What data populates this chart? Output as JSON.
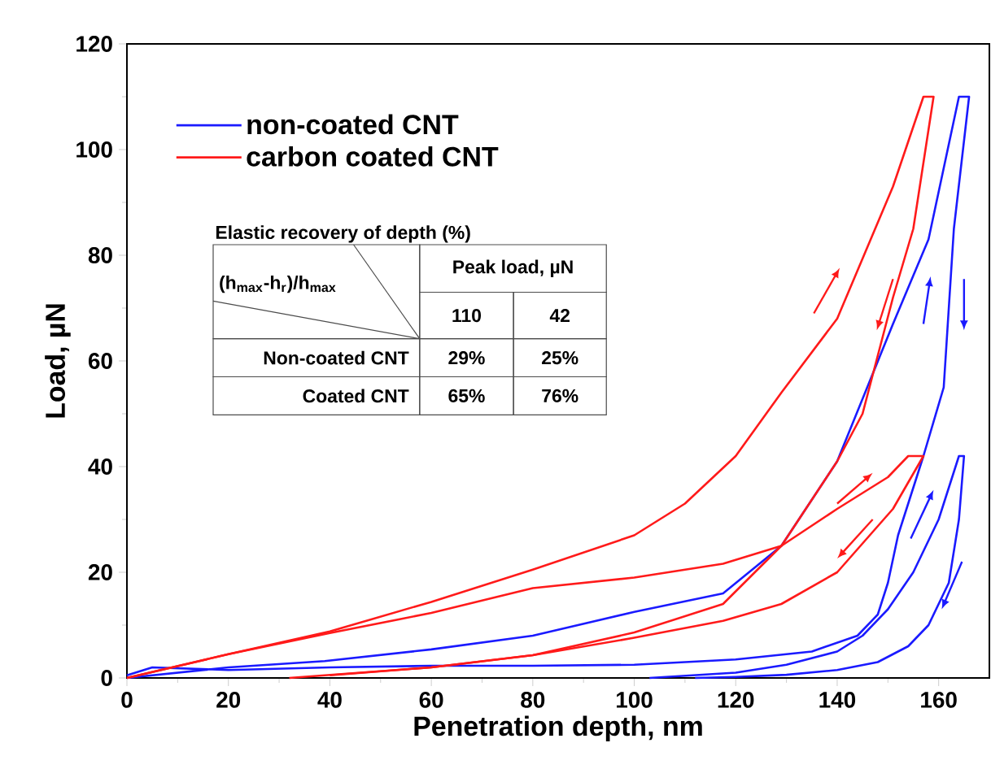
{
  "chart_data": {
    "type": "line",
    "xlabel": "Penetration depth, nm",
    "ylabel": "Load, µN",
    "xlim": [
      0,
      170
    ],
    "ylim": [
      0,
      120
    ],
    "xticks": [
      0,
      20,
      40,
      60,
      80,
      100,
      120,
      140,
      160
    ],
    "yticks": [
      0,
      20,
      40,
      60,
      80,
      100,
      120
    ],
    "legend": "top left",
    "grid": false,
    "marker": "none",
    "line_style": "solid",
    "series": [
      {
        "name": "non-coated CNT",
        "color": "#1a1aff",
        "x": [
          0,
          20,
          39,
          60,
          80,
          100,
          117.5,
          129,
          140,
          151,
          158,
          162,
          164,
          166,
          163,
          161,
          157,
          152,
          150,
          148,
          144,
          135,
          120,
          100,
          80,
          60,
          40,
          20,
          5,
          0
        ],
        "values": [
          0,
          2,
          3.2,
          5.4,
          8,
          12.5,
          16,
          25,
          41,
          67,
          83,
          101,
          110,
          110,
          85,
          55,
          42,
          27,
          18,
          12,
          8,
          5,
          3.5,
          2.5,
          2.3,
          2.3,
          2,
          1.5,
          2,
          0.5
        ]
      },
      {
        "name": "carbon coated CNT",
        "color": "#ff1a1a",
        "x": [
          0,
          20,
          40,
          60,
          80,
          100,
          110,
          120,
          129,
          140,
          151,
          157,
          159,
          155,
          151,
          145,
          140,
          129,
          117.5,
          100,
          80,
          60,
          32
        ],
        "values": [
          0,
          4.5,
          8.8,
          14.4,
          20.5,
          27,
          33,
          42,
          54,
          68,
          93,
          110,
          110,
          85,
          72,
          50,
          41,
          25,
          14,
          8.6,
          4.3,
          2,
          0
        ]
      },
      {
        "color": "#1a1aff",
        "x": [
          103,
          120,
          130,
          140,
          145,
          150,
          155,
          160,
          164,
          165,
          164,
          162,
          158,
          154,
          148,
          140,
          130,
          120,
          112
        ],
        "values": [
          0,
          1,
          2.5,
          5,
          8,
          13,
          20,
          30,
          42,
          42,
          30,
          18,
          10,
          6,
          3,
          1.5,
          0.6,
          0.2,
          0
        ]
      },
      {
        "color": "#ff1a1a",
        "x": [
          0,
          20,
          40,
          60,
          80,
          100,
          117.5,
          129,
          140,
          150,
          154,
          157,
          151,
          140,
          129,
          117.5,
          100,
          80,
          60,
          40
        ],
        "values": [
          0,
          4.5,
          8.5,
          12.3,
          17,
          19,
          21.6,
          25,
          32,
          38,
          42,
          42,
          32,
          20,
          14,
          10.8,
          7.6,
          4.3,
          2,
          0.5
        ]
      }
    ],
    "annotations": [
      "Elastic recovery of depth (%)",
      "(h$_{max}$-h$_{r}$)/h$_{max}$",
      "Peak load, µN",
      "110",
      "42",
      "Non-coated CNT",
      "29%",
      "25%",
      "Coated CNT",
      "65%",
      "76%"
    ]
  }
}
